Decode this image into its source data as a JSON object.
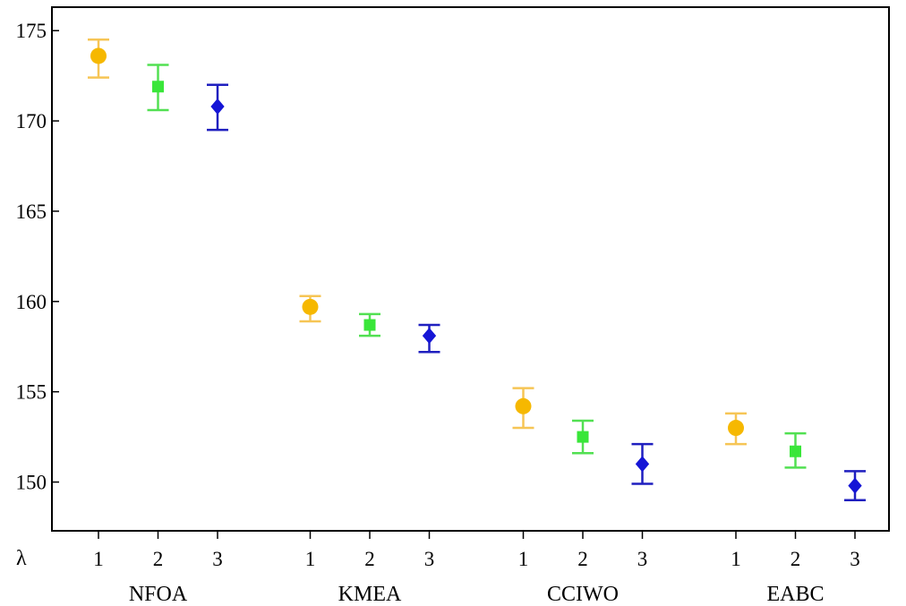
{
  "chart_data": {
    "type": "scatter",
    "title": "",
    "xlabel": "",
    "ylabel": "",
    "ylim": [
      147.3,
      176.3
    ],
    "y_ticks": [
      150,
      155,
      160,
      165,
      170,
      175
    ],
    "x_axis_symbol": "λ",
    "groups": [
      "NFOA",
      "KMEA",
      "CCIWO",
      "EABC"
    ],
    "lambda_levels": [
      "1",
      "2",
      "3"
    ],
    "series": [
      {
        "lambda": "1",
        "marker": "circle",
        "color": "#f6b800",
        "bar_color": "#f6c555",
        "points": [
          {
            "group": "NFOA",
            "mean": 173.6,
            "low": 172.4,
            "high": 174.5
          },
          {
            "group": "KMEA",
            "mean": 159.7,
            "low": 158.9,
            "high": 160.3
          },
          {
            "group": "CCIWO",
            "mean": 154.2,
            "low": 153.0,
            "high": 155.2
          },
          {
            "group": "EABC",
            "mean": 153.0,
            "low": 152.1,
            "high": 153.8
          }
        ]
      },
      {
        "lambda": "2",
        "marker": "square",
        "color": "#39e639",
        "bar_color": "#52e052",
        "points": [
          {
            "group": "NFOA",
            "mean": 171.9,
            "low": 170.6,
            "high": 173.1
          },
          {
            "group": "KMEA",
            "mean": 158.7,
            "low": 158.1,
            "high": 159.3
          },
          {
            "group": "CCIWO",
            "mean": 152.5,
            "low": 151.6,
            "high": 153.4
          },
          {
            "group": "EABC",
            "mean": 151.7,
            "low": 150.8,
            "high": 152.7
          }
        ]
      },
      {
        "lambda": "3",
        "marker": "diamond",
        "color": "#1515d6",
        "bar_color": "#1f1fbf",
        "points": [
          {
            "group": "NFOA",
            "mean": 170.8,
            "low": 169.5,
            "high": 172.0
          },
          {
            "group": "KMEA",
            "mean": 158.1,
            "low": 157.2,
            "high": 158.7
          },
          {
            "group": "CCIWO",
            "mean": 151.0,
            "low": 149.9,
            "high": 152.1
          },
          {
            "group": "EABC",
            "mean": 149.8,
            "low": 149.0,
            "high": 150.6
          }
        ]
      }
    ],
    "grid": false,
    "legend": "none"
  }
}
